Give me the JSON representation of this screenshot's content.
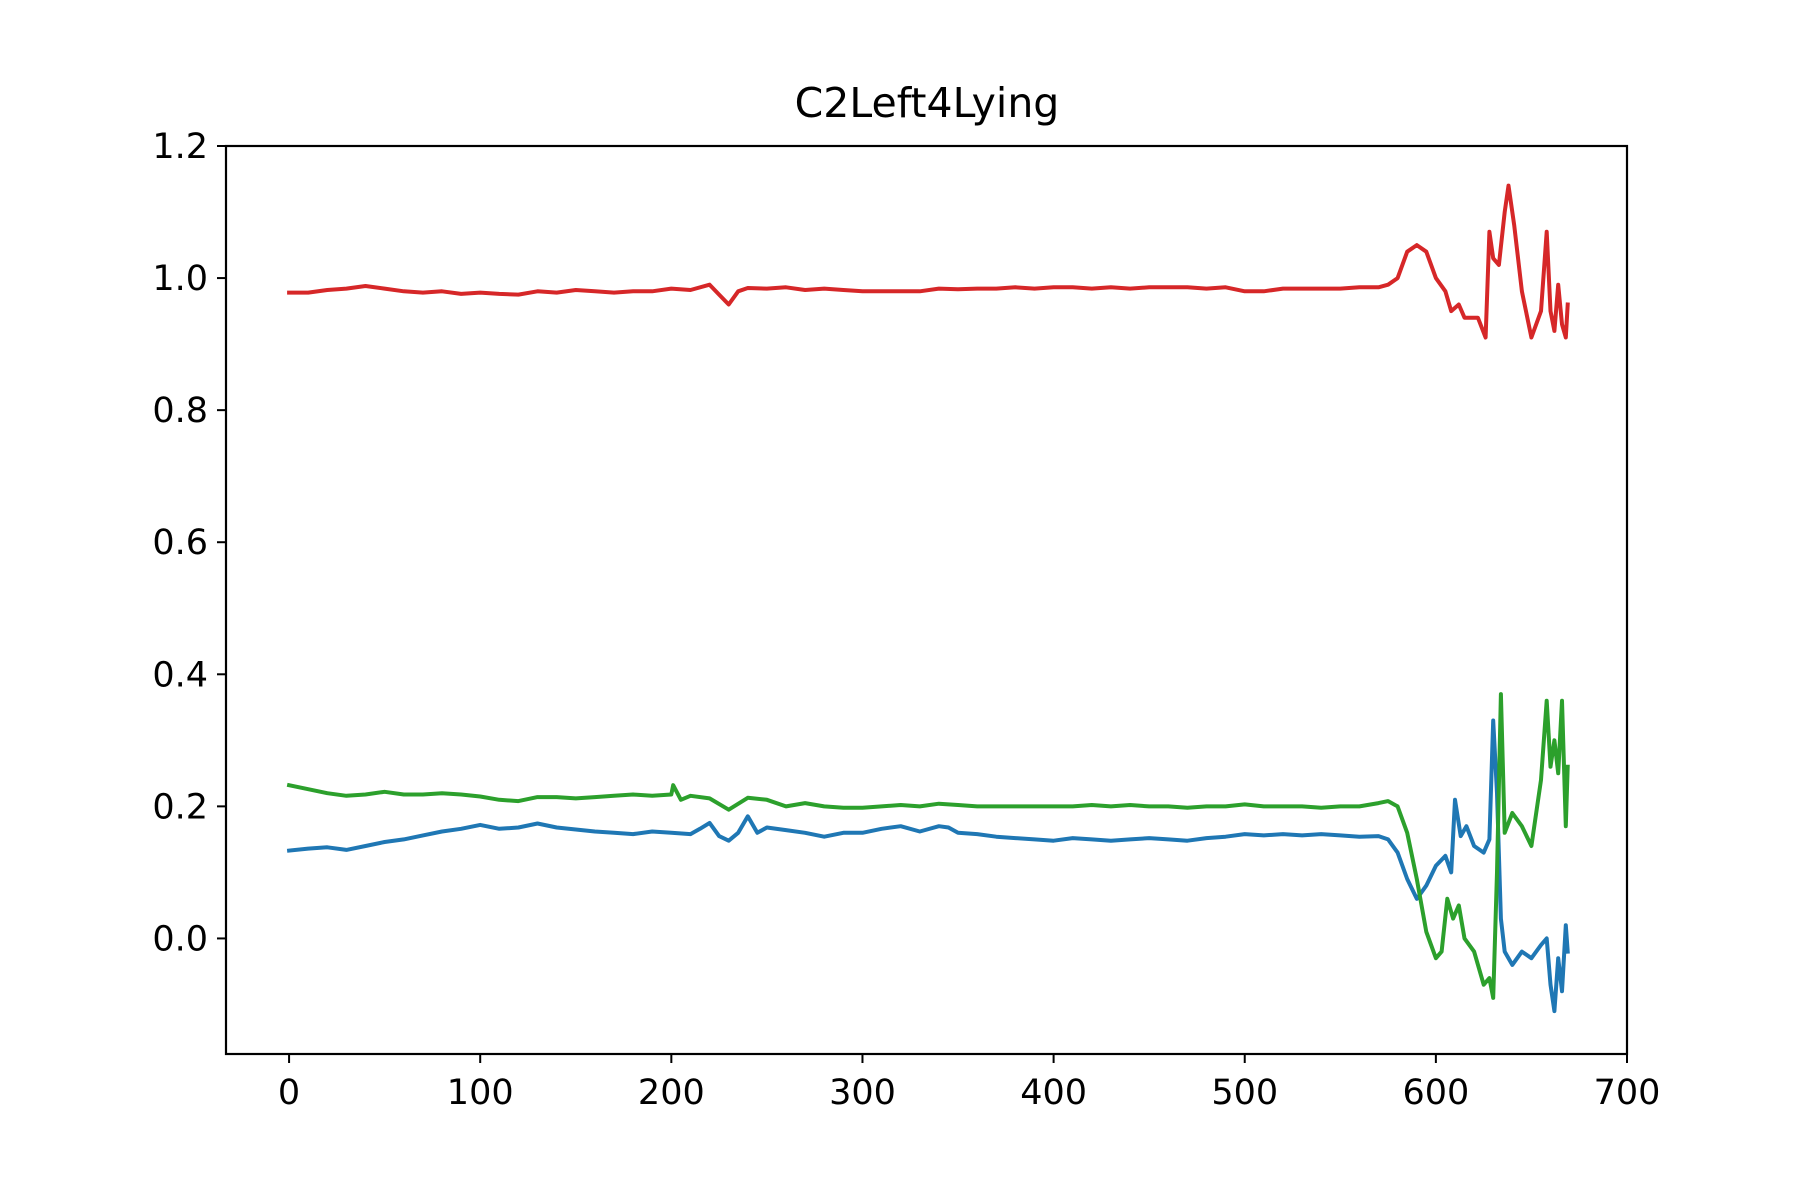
{
  "chart_data": {
    "type": "line",
    "title": "C2Left4Lying",
    "xlabel": "",
    "ylabel": "",
    "xlim": [
      -33,
      700
    ],
    "ylim": [
      -0.175,
      1.2
    ],
    "xticks": [
      0,
      100,
      200,
      300,
      400,
      500,
      600,
      700
    ],
    "xtick_labels": [
      "0",
      "100",
      "200",
      "300",
      "400",
      "500",
      "600",
      "700"
    ],
    "yticks": [
      0.0,
      0.2,
      0.4,
      0.6,
      0.8,
      1.0,
      1.2
    ],
    "ytick_labels": [
      "0.0",
      "0.2",
      "0.4",
      "0.6",
      "0.8",
      "1.0",
      "1.2"
    ],
    "grid": false,
    "legend": "none",
    "series": [
      {
        "color": "#1f77b4",
        "x": [
          0,
          10,
          20,
          30,
          40,
          50,
          60,
          70,
          80,
          90,
          100,
          110,
          120,
          130,
          140,
          150,
          160,
          170,
          180,
          190,
          200,
          210,
          215,
          220,
          225,
          230,
          235,
          240,
          245,
          250,
          260,
          270,
          280,
          290,
          300,
          310,
          320,
          330,
          340,
          345,
          350,
          360,
          370,
          380,
          390,
          400,
          410,
          420,
          430,
          440,
          450,
          460,
          470,
          480,
          490,
          500,
          510,
          520,
          530,
          540,
          550,
          560,
          570,
          575,
          580,
          585,
          590,
          595,
          600,
          605,
          608,
          610,
          613,
          616,
          620,
          625,
          628,
          630,
          632,
          634,
          636,
          640,
          645,
          650,
          655,
          658,
          660,
          662,
          664,
          666,
          668,
          669
        ],
        "y": [
          0.133,
          0.136,
          0.138,
          0.134,
          0.14,
          0.146,
          0.15,
          0.156,
          0.162,
          0.166,
          0.172,
          0.166,
          0.168,
          0.174,
          0.168,
          0.165,
          0.162,
          0.16,
          0.158,
          0.162,
          0.16,
          0.158,
          0.166,
          0.175,
          0.155,
          0.148,
          0.16,
          0.185,
          0.16,
          0.168,
          0.164,
          0.16,
          0.154,
          0.16,
          0.16,
          0.166,
          0.17,
          0.162,
          0.17,
          0.168,
          0.16,
          0.158,
          0.154,
          0.152,
          0.15,
          0.148,
          0.152,
          0.15,
          0.148,
          0.15,
          0.152,
          0.15,
          0.148,
          0.152,
          0.154,
          0.158,
          0.156,
          0.158,
          0.156,
          0.158,
          0.156,
          0.154,
          0.155,
          0.15,
          0.13,
          0.09,
          0.06,
          0.08,
          0.11,
          0.125,
          0.1,
          0.21,
          0.155,
          0.17,
          0.14,
          0.13,
          0.15,
          0.33,
          0.22,
          0.03,
          -0.02,
          -0.04,
          -0.02,
          -0.03,
          -0.01,
          0.0,
          -0.07,
          -0.11,
          -0.03,
          -0.08,
          0.02,
          -0.02
        ]
      },
      {
        "color": "#2ca02c",
        "x": [
          0,
          10,
          20,
          30,
          40,
          50,
          60,
          70,
          80,
          90,
          100,
          110,
          120,
          130,
          140,
          150,
          160,
          170,
          180,
          190,
          200,
          201,
          205,
          210,
          220,
          230,
          240,
          250,
          260,
          270,
          280,
          290,
          300,
          310,
          320,
          330,
          340,
          350,
          360,
          370,
          380,
          390,
          400,
          410,
          420,
          430,
          440,
          450,
          460,
          470,
          480,
          490,
          500,
          510,
          520,
          530,
          540,
          550,
          560,
          570,
          575,
          580,
          585,
          590,
          595,
          600,
          603,
          606,
          609,
          612,
          615,
          620,
          625,
          628,
          630,
          632,
          634,
          636,
          640,
          645,
          650,
          655,
          658,
          660,
          662,
          664,
          666,
          668,
          669
        ],
        "y": [
          0.232,
          0.226,
          0.22,
          0.216,
          0.218,
          0.222,
          0.218,
          0.218,
          0.22,
          0.218,
          0.215,
          0.21,
          0.208,
          0.214,
          0.214,
          0.212,
          0.214,
          0.216,
          0.218,
          0.216,
          0.218,
          0.232,
          0.21,
          0.216,
          0.212,
          0.195,
          0.213,
          0.21,
          0.2,
          0.205,
          0.2,
          0.198,
          0.198,
          0.2,
          0.202,
          0.2,
          0.204,
          0.202,
          0.2,
          0.2,
          0.2,
          0.2,
          0.2,
          0.2,
          0.202,
          0.2,
          0.202,
          0.2,
          0.2,
          0.198,
          0.2,
          0.2,
          0.203,
          0.2,
          0.2,
          0.2,
          0.198,
          0.2,
          0.2,
          0.205,
          0.208,
          0.2,
          0.16,
          0.09,
          0.01,
          -0.03,
          -0.02,
          0.06,
          0.03,
          0.05,
          0.0,
          -0.02,
          -0.07,
          -0.06,
          -0.09,
          0.1,
          0.37,
          0.16,
          0.19,
          0.17,
          0.14,
          0.24,
          0.36,
          0.26,
          0.3,
          0.25,
          0.36,
          0.17,
          0.26
        ]
      },
      {
        "color": "#d62728",
        "x": [
          0,
          10,
          20,
          30,
          40,
          50,
          60,
          70,
          80,
          90,
          100,
          110,
          120,
          130,
          140,
          150,
          160,
          170,
          180,
          190,
          200,
          210,
          220,
          225,
          230,
          235,
          240,
          250,
          260,
          270,
          280,
          290,
          300,
          310,
          320,
          330,
          340,
          350,
          360,
          370,
          380,
          390,
          400,
          410,
          420,
          430,
          440,
          450,
          460,
          470,
          480,
          490,
          500,
          510,
          520,
          530,
          540,
          550,
          560,
          570,
          575,
          580,
          585,
          590,
          595,
          600,
          605,
          608,
          612,
          615,
          618,
          622,
          626,
          628,
          630,
          633,
          636,
          638,
          641,
          645,
          650,
          655,
          658,
          660,
          662,
          664,
          666,
          668,
          669
        ],
        "y": [
          0.978,
          0.978,
          0.982,
          0.984,
          0.988,
          0.984,
          0.98,
          0.978,
          0.98,
          0.976,
          0.978,
          0.976,
          0.975,
          0.98,
          0.978,
          0.982,
          0.98,
          0.978,
          0.98,
          0.98,
          0.984,
          0.982,
          0.99,
          0.975,
          0.96,
          0.98,
          0.985,
          0.984,
          0.986,
          0.982,
          0.984,
          0.982,
          0.98,
          0.98,
          0.98,
          0.98,
          0.984,
          0.983,
          0.984,
          0.984,
          0.986,
          0.984,
          0.986,
          0.986,
          0.984,
          0.986,
          0.984,
          0.986,
          0.986,
          0.986,
          0.984,
          0.986,
          0.98,
          0.98,
          0.984,
          0.984,
          0.984,
          0.984,
          0.986,
          0.986,
          0.99,
          1.0,
          1.04,
          1.05,
          1.04,
          1.0,
          0.98,
          0.95,
          0.96,
          0.94,
          0.94,
          0.94,
          0.91,
          1.07,
          1.03,
          1.02,
          1.1,
          1.14,
          1.08,
          0.98,
          0.91,
          0.95,
          1.07,
          0.95,
          0.92,
          0.99,
          0.93,
          0.91,
          0.96
        ]
      }
    ]
  }
}
